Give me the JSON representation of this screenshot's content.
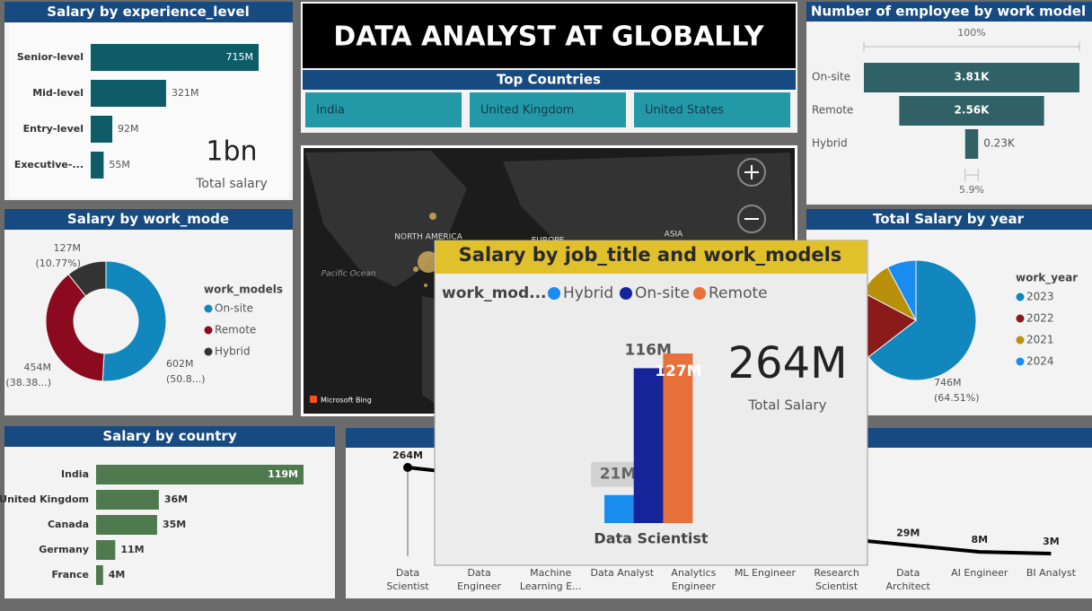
{
  "header": {
    "title": "DATA ANALYST AT GLOBALLY"
  },
  "slicer": {
    "title": "Top Countries",
    "items": [
      "India",
      "United Kingdom",
      "United States"
    ]
  },
  "map": {
    "labels": [
      "NORTH AMERICA",
      "Pacific Ocean",
      "ASIA",
      "EUROPE"
    ],
    "attribution": "Microsoft Bing"
  },
  "chart_data": [
    {
      "type": "hbar",
      "title": "Salary by experience_level",
      "categories": [
        "Senior-level",
        "Mid-level",
        "Entry-level",
        "Executive-..."
      ],
      "values": [
        715,
        321,
        92,
        55
      ],
      "value_labels": [
        "715M",
        "321M",
        "92M",
        "55M"
      ],
      "color": "#0d5c68",
      "card": {
        "value": "1bn",
        "label": "Total salary"
      }
    },
    {
      "type": "funnel",
      "title": "Number of employee by work model",
      "categories": [
        "On-site",
        "Remote",
        "Hybrid"
      ],
      "values": [
        3.81,
        2.56,
        0.23
      ],
      "value_labels": [
        "3.81K",
        "2.56K",
        "0.23K"
      ],
      "color": "#2f6167",
      "top_label": "100%",
      "bottom_label": "5.9%"
    },
    {
      "type": "donut",
      "title": "Salary by work_mode",
      "legend_title": "work_models",
      "categories": [
        "On-site",
        "Remote",
        "Hybrid"
      ],
      "values": [
        602,
        454,
        127
      ],
      "value_labels": [
        "602M",
        "454M",
        "127M"
      ],
      "percent_labels": [
        "(50.8...)",
        "(38.38...)",
        "(10.77%)"
      ],
      "colors": [
        "#1187be",
        "#8b0a1f",
        "#333333"
      ]
    },
    {
      "type": "pie",
      "title": "Total Salary by year",
      "legend_title": "work_year",
      "categories": [
        "2023",
        "2022",
        "2021",
        "2024"
      ],
      "values": [
        746,
        210,
        110,
        90
      ],
      "value_labels": [
        "746M",
        null,
        null,
        null
      ],
      "percent_labels": [
        "(64.51%)",
        null,
        null,
        null
      ],
      "colors": [
        "#1187be",
        "#8b1a1a",
        "#b8900a",
        "#1a8cf0"
      ]
    },
    {
      "type": "hbar",
      "title": "Salary by country",
      "categories": [
        "India",
        "United Kingdom",
        "Canada",
        "Germany",
        "France"
      ],
      "values": [
        119,
        36,
        35,
        11,
        4
      ],
      "value_labels": [
        "119M",
        "36M",
        "35M",
        "11M",
        "4M"
      ],
      "color": "#4e7a4e"
    },
    {
      "type": "line",
      "categories": [
        "Data Scientist",
        "Data Engineer",
        "Machine Learning E...",
        "Data Analyst",
        "Analytics Engineer",
        "ML Engineer",
        "Research Scientist",
        "Data Architect",
        "AI Engineer",
        "BI Analyst"
      ],
      "values": [
        264,
        240,
        140,
        90,
        70,
        60,
        50,
        29,
        8,
        3
      ],
      "value_labels": [
        "264M",
        null,
        null,
        null,
        null,
        null,
        null,
        "29M",
        "8M",
        "3M"
      ],
      "color": "#000000"
    },
    {
      "type": "grouped_bar",
      "title": "Salary by job_title and work_models",
      "legend_title": "work_mod...",
      "categories": [
        "Data Scientist"
      ],
      "series": [
        {
          "name": "Hybrid",
          "color": "#1a8cf0",
          "values": [
            21
          ],
          "value_labels": [
            "21M"
          ]
        },
        {
          "name": "On-site",
          "color": "#16249a",
          "values": [
            116
          ],
          "value_labels": [
            "116M"
          ]
        },
        {
          "name": "Remote",
          "color": "#e8703a",
          "values": [
            127
          ],
          "value_labels": [
            "127M"
          ]
        }
      ],
      "card": {
        "value": "264M",
        "label": "Total Salary"
      }
    }
  ]
}
